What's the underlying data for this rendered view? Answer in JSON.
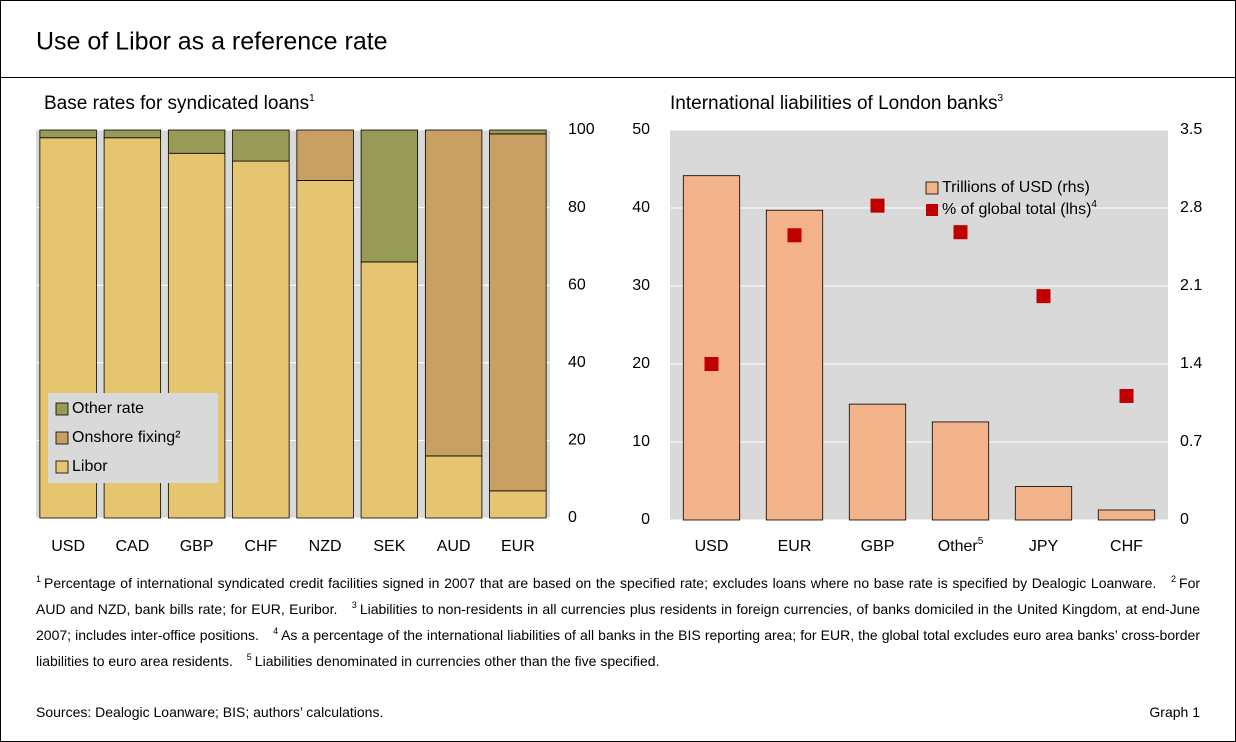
{
  "header": {
    "title": "Use of Libor as a reference rate"
  },
  "chart_data": [
    {
      "type": "stacked_bar",
      "title": "Base rates for syndicated loans",
      "title_note": "1",
      "categories": [
        "USD",
        "CAD",
        "GBP",
        "CHF",
        "NZD",
        "SEK",
        "AUD",
        "EUR"
      ],
      "series": [
        {
          "name": "Libor",
          "color": "#e6c571",
          "values": [
            98,
            98,
            94,
            92,
            87,
            66,
            16,
            7
          ]
        },
        {
          "name": "Onshore fixing²",
          "color": "#c9a064",
          "values": [
            0,
            0,
            0,
            0,
            13,
            0,
            84,
            92
          ]
        },
        {
          "name": "Other rate",
          "color": "#989b57",
          "values": [
            2,
            2,
            6,
            8,
            0,
            34,
            0,
            1
          ]
        }
      ],
      "ylim": [
        0,
        100
      ],
      "yticks": [
        0,
        20,
        40,
        60,
        80,
        100
      ],
      "axis_side": "right",
      "grid": true,
      "legend": "lower left"
    },
    {
      "type": "bar_scatter",
      "title": "International liabilities of London banks",
      "title_note": "3",
      "categories": [
        "USD",
        "EUR",
        "GBP",
        "Other",
        "JPY",
        "CHF"
      ],
      "category_notes": [
        null,
        null,
        null,
        "5",
        null,
        null
      ],
      "series": [
        {
          "name": "Trillions of USD (rhs)",
          "color": "#f2b28a",
          "axis": "y2",
          "values": [
            3.09,
            2.78,
            1.04,
            0.88,
            0.3,
            0.09
          ]
        },
        {
          "name": "% of global total (lhs)",
          "name_note": "4",
          "color": "#c00000",
          "values": [
            20,
            36.5,
            40.3,
            36.9,
            28.7,
            15.9
          ]
        }
      ],
      "ylim": [
        0,
        50
      ],
      "yticks": [
        0,
        10,
        20,
        30,
        40,
        50
      ],
      "y2lim": [
        0,
        3.5
      ],
      "y2ticks": [
        0,
        0.7,
        1.4,
        2.1,
        2.8,
        3.5
      ],
      "grid": true,
      "legend": "upper right"
    }
  ],
  "footnotes": [
    {
      "number": "1",
      "text": "Percentage of international syndicated credit facilities signed in 2007 that are based on the specified rate; excludes loans where no base rate is specified by Dealogic Loanware."
    },
    {
      "number": "2",
      "text": "For AUD and NZD, bank bills rate; for EUR, Euribor."
    },
    {
      "number": "3",
      "text": "Liabilities to non-residents in all currencies plus residents in foreign currencies, of banks domiciled in the United Kingdom, at end-June 2007; includes inter-office positions."
    },
    {
      "number": "4",
      "text": "As a percentage of the international liabilities of all banks in the BIS reporting area; for EUR, the global total excludes euro area banks’ cross-border liabilities to euro area residents."
    },
    {
      "number": "5",
      "text": "Liabilities denominated in currencies other than the five specified."
    }
  ],
  "sources": "Sources: Dealogic Loanware; BIS; authors’ calculations.",
  "graph_label": "Graph 1"
}
